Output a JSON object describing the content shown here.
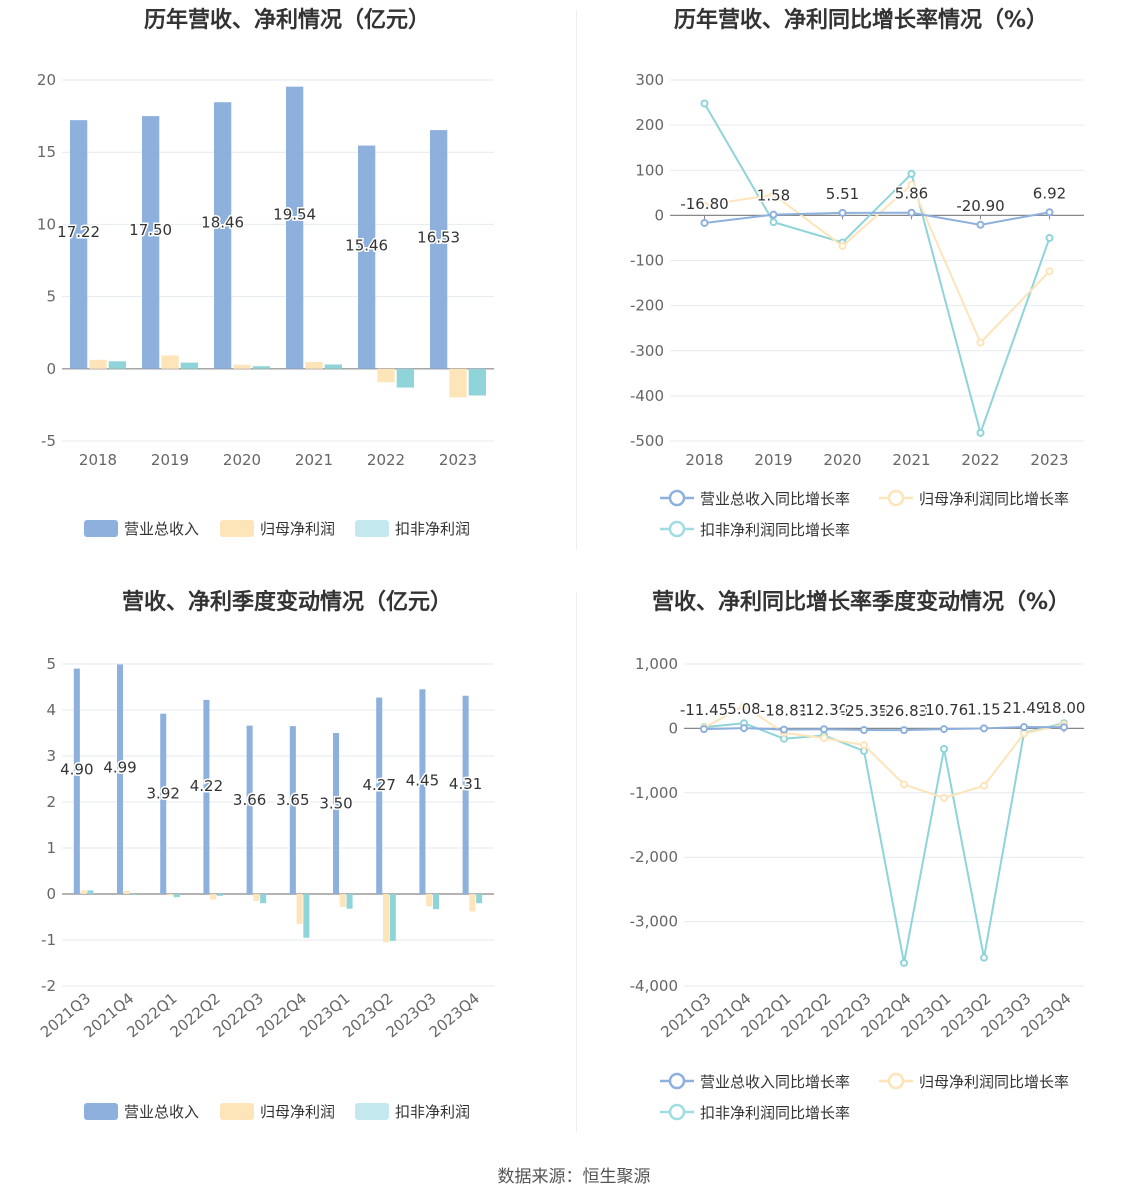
{
  "source": "数据来源：恒生聚源",
  "legend_bar": [
    {
      "name": "营业总收入",
      "color": "#8eb0dd"
    },
    {
      "name": "归母净利润",
      "color": "#fde4b9"
    },
    {
      "name": "扣非净利润",
      "color": "#c3e8ee"
    }
  ],
  "legend_line": [
    {
      "name": "营业总收入同比增长率",
      "color": "#8eb0dd"
    },
    {
      "name": "归母净利润同比增长率",
      "color": "#fde4b9"
    },
    {
      "name": "扣非净利润同比增长率",
      "color": "#9fdde2"
    }
  ],
  "chart_data": [
    {
      "type": "bar",
      "title": "历年营收、净利情况（亿元）",
      "categories": [
        "2018",
        "2019",
        "2020",
        "2021",
        "2022",
        "2023"
      ],
      "ylim": [
        -5,
        20
      ],
      "yticks": [
        "-5",
        "0",
        "5",
        "10",
        "15",
        "20"
      ],
      "series": [
        {
          "name": "营业总收入",
          "color": "#8eb0dd",
          "values": [
            17.22,
            17.5,
            18.46,
            19.54,
            15.46,
            16.53
          ],
          "labels": [
            "17.22",
            "17.50",
            "18.46",
            "19.54",
            "15.46",
            "16.53"
          ]
        },
        {
          "name": "归母净利润",
          "color": "#fde4b9",
          "values": [
            0.62,
            0.92,
            0.28,
            0.47,
            -0.93,
            -1.98
          ]
        },
        {
          "name": "扣非净利润",
          "color": "#8fd4d9",
          "values": [
            0.52,
            0.43,
            0.18,
            0.3,
            -1.3,
            -1.85
          ]
        }
      ],
      "grid": true,
      "legend": "bottom"
    },
    {
      "type": "line",
      "title": "历年营收、净利同比增长率情况（%）",
      "categories": [
        "2018",
        "2019",
        "2020",
        "2021",
        "2022",
        "2023"
      ],
      "ylim": [
        -500,
        300
      ],
      "yticks": [
        "-500",
        "-400",
        "-300",
        "-200",
        "-100",
        "0",
        "100",
        "200",
        "300"
      ],
      "series": [
        {
          "name": "营业总收入同比增长率",
          "color": "#8eb0dd",
          "values": [
            -16.8,
            1.58,
            5.51,
            5.86,
            -20.9,
            6.92
          ],
          "labels": [
            "-16.80",
            "1.58",
            "5.51",
            "5.86",
            "-20.90",
            "6.92"
          ]
        },
        {
          "name": "归母净利润同比增长率",
          "color": "#fde4b9",
          "values": [
            22,
            46,
            -68,
            68,
            -282,
            -124
          ]
        },
        {
          "name": "扣非净利润同比增长率",
          "color": "#8fd4d9",
          "values": [
            248,
            -15,
            -60,
            92,
            -482,
            -50
          ]
        }
      ],
      "grid": true,
      "legend": "bottom"
    },
    {
      "type": "bar",
      "title": "营收、净利季度变动情况（亿元）",
      "categories": [
        "2021Q3",
        "2021Q4",
        "2022Q1",
        "2022Q2",
        "2022Q3",
        "2022Q4",
        "2023Q1",
        "2023Q2",
        "2023Q3",
        "2023Q4"
      ],
      "ylim": [
        -2,
        5
      ],
      "yticks": [
        "-2",
        "-1",
        "0",
        "1",
        "2",
        "3",
        "4",
        "5"
      ],
      "series": [
        {
          "name": "营业总收入",
          "color": "#8eb0dd",
          "values": [
            4.9,
            4.99,
            3.92,
            4.22,
            3.66,
            3.65,
            3.5,
            4.27,
            4.45,
            4.31
          ],
          "labels": [
            "4.90",
            "4.99",
            "3.92",
            "4.22",
            "3.66",
            "3.65",
            "3.50",
            "4.27",
            "4.45",
            "4.31"
          ]
        },
        {
          "name": "归母净利润",
          "color": "#fde4b9",
          "values": [
            0.08,
            0.07,
            -0.03,
            -0.12,
            -0.15,
            -0.65,
            -0.28,
            -1.05,
            -0.27,
            -0.38
          ]
        },
        {
          "name": "扣非净利润",
          "color": "#8fd4d9",
          "values": [
            0.08,
            -0.02,
            -0.07,
            -0.04,
            -0.2,
            -0.95,
            -0.32,
            -1.02,
            -0.33,
            -0.2
          ]
        }
      ],
      "grid": true,
      "legend": "bottom"
    },
    {
      "type": "line",
      "title": "营收、净利同比增长率季度变动情况（%）",
      "categories": [
        "2021Q3",
        "2021Q4",
        "2022Q1",
        "2022Q2",
        "2022Q3",
        "2022Q4",
        "2023Q1",
        "2023Q2",
        "2023Q3",
        "2023Q4"
      ],
      "ylim": [
        -4000,
        1000
      ],
      "yticks": [
        "-4,000",
        "-3,000",
        "-2,000",
        "-1,000",
        "0",
        "1,000"
      ],
      "series": [
        {
          "name": "营业总收入同比增长率",
          "color": "#8eb0dd",
          "values": [
            -11.45,
            5.08,
            -18.81,
            -12.3,
            -25.35,
            -26.83,
            -10.76,
            1.15,
            21.49,
            18.0
          ],
          "labels": [
            "-11.45",
            "5.08",
            "-18.81",
            "-12.30",
            "-25.35",
            "-26.83",
            "-10.76",
            "1.15",
            "21.49",
            "18.00"
          ]
        },
        {
          "name": "归母净利润同比增长率",
          "color": "#fde4b9",
          "values": [
            10,
            350,
            -70,
            -150,
            -260,
            -870,
            -1080,
            -890,
            -80,
            60
          ]
        },
        {
          "name": "扣非净利润同比增长率",
          "color": "#8fd4d9",
          "values": [
            20,
            80,
            -160,
            -110,
            -350,
            -3640,
            -320,
            -3560,
            -70,
            80
          ]
        }
      ],
      "grid": true,
      "legend": "bottom"
    }
  ]
}
